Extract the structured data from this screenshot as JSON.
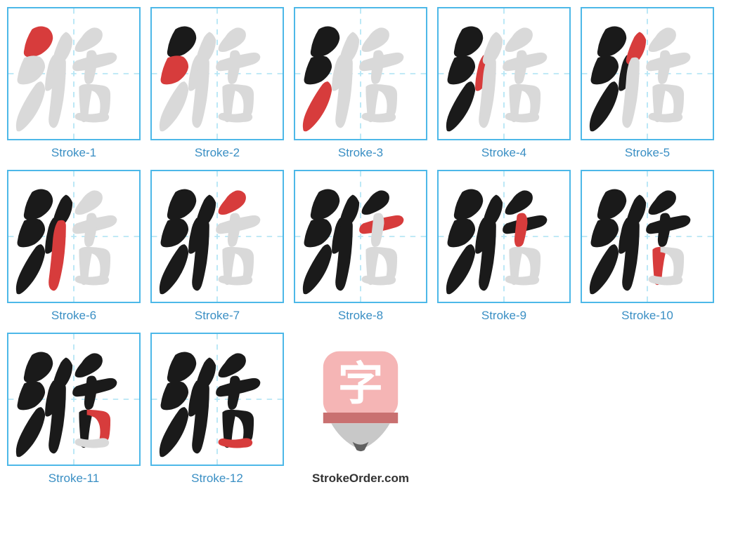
{
  "character": "湉",
  "site_name": "StrokeOrder.com",
  "caption_prefix": "Stroke-",
  "total_strokes": 12,
  "colors": {
    "border": "#4db8e8",
    "guide": "#b8e6f5",
    "caption": "#3a8fc4",
    "stroke_current": "#d73c3c",
    "stroke_done": "#1a1a1a",
    "stroke_future": "#d9d9d9",
    "logo_pink": "#f5b5b5",
    "logo_dark": "#c97070",
    "logo_gray": "#c8c8c8",
    "logo_white": "#ffffff"
  },
  "strokes": [
    "M 18 16 Q 24 12 30 15 Q 34 18 34 23 Q 33 30 25 35 Q 19 38 14 37 Q 11 36 12 32 Q 13 24 18 16 Z",
    "M 12 38 Q 18 35 24 37 Q 28 40 28 45 Q 27 51 20 56 Q 14 59 9 58 Q 6 57 7 53 Q 8 46 12 38 Z",
    "M 25 56 Q 28 58 28 63 Q 26 74 19 84 Q 13 92 9 94 Q 6 95 6 92 Q 5 86 10 76 Q 15 66 21 58 Q 23 56 25 56 Z",
    "M 34 36 Q 38 34 40 38 Q 41 44 38 54 Q 35 61 31 63 Q 28 64 28 61 Q 28 54 30 46 Q 31 40 34 36 Z",
    "M 44 18 Q 47 19 49 24 Q 49 32 44 39 Q 40 43 36 43 Q 33 42 34 38 Q 36 30 40 22 Q 42 19 44 18 Z",
    "M 38 38 Q 44 36 44 42 Q 44 56 42 70 Q 40 82 38 88 Q 36 93 33 91 Q 30 89 31 82 Q 33 66 34 52 Q 35 42 38 38 Z",
    "M 56 22 Q 59 17 64 15 Q 68 14 71 17 Q 73 20 71 24 Q 68 29 57 33 Q 52 34 51 32 Q 50 29 56 22 Z",
    "M 52 40 Q 64 36 76 34 Q 82 33 83 37 Q 83 41 77 43 Q 64 47 53 48 Q 49 48 49 45 Q 49 42 52 40 Z",
    "M 64 32 Q 68 32 68 40 Q 67 48 65 55 Q 64 58 61 58 Q 58 58 58 52 Q 59 42 60 34 Q 61 32 64 32 Z",
    "M 54 60 Q 56 58 60 58 L 62 58 Q 66 58 64 62 Q 62 71 61 82 Q 60 88 57 87 Q 54 86 55 80 Q 54 68 54 62 Q 54 60 54 60 Z",
    "M 60 58 Q 66 58 72 59 Q 78 60 78 66 Q 78 74 77 79 Q 76 83 72 83 Q 69 83 70 78 Q 71 68 66 64 Q 62 62 60 62 Z",
    "M 55 80 Q 62 82 70 80 Q 76 79 77 83 Q 77 87 70 87 Q 63 88 55 86 Q 50 85 51 82 Q 52 80 55 80 Z"
  ],
  "logo_char": "字"
}
